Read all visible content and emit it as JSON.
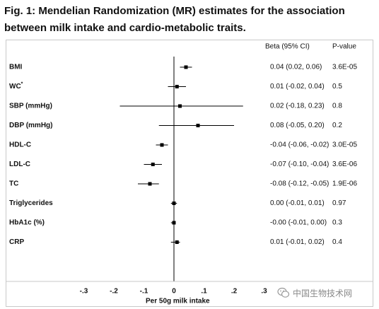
{
  "title": "Fig. 1: Mendelian Randomization (MR) estimates for the association between milk intake and cardio-metabolic traits.",
  "chart_data": {
    "type": "forest",
    "xlabel": "Per 50g milk intake",
    "xlim": [
      -0.3,
      0.3
    ],
    "xticks": [
      -0.3,
      -0.2,
      -0.1,
      0,
      0.1,
      0.2,
      0.3
    ],
    "xtick_labels": [
      "-.3",
      "-.2",
      "-.1",
      "0",
      ".1",
      ".2",
      ".3"
    ],
    "reference_line": 0,
    "column_headers": {
      "beta": "Beta (95% CI)",
      "p": "P-value"
    },
    "rows": [
      {
        "trait": "BMI",
        "sup": "",
        "beta": 0.04,
        "lo": 0.02,
        "hi": 0.06,
        "beta_text": "0.04 (0.02, 0.06)",
        "p_text": "3.6E-05"
      },
      {
        "trait": "WC",
        "sup": "*",
        "beta": 0.01,
        "lo": -0.02,
        "hi": 0.04,
        "beta_text": "0.01 (-0.02, 0.04)",
        "p_text": "0.5"
      },
      {
        "trait": "SBP (mmHg)",
        "sup": "",
        "beta": 0.02,
        "lo": -0.18,
        "hi": 0.23,
        "beta_text": "0.02 (-0.18, 0.23)",
        "p_text": "0.8"
      },
      {
        "trait": "DBP (mmHg)",
        "sup": "",
        "beta": 0.08,
        "lo": -0.05,
        "hi": 0.2,
        "beta_text": "0.08 (-0.05, 0.20)",
        "p_text": "0.2"
      },
      {
        "trait": "HDL-C",
        "sup": "",
        "beta": -0.04,
        "lo": -0.06,
        "hi": -0.02,
        "beta_text": "-0.04 (-0.06, -0.02)",
        "p_text": "3.0E-05"
      },
      {
        "trait": "LDL-C",
        "sup": "",
        "beta": -0.07,
        "lo": -0.1,
        "hi": -0.04,
        "beta_text": "-0.07 (-0.10, -0.04)",
        "p_text": "3.6E-06"
      },
      {
        "trait": "TC",
        "sup": "",
        "beta": -0.08,
        "lo": -0.12,
        "hi": -0.05,
        "beta_text": "-0.08 (-0.12, -0.05)",
        "p_text": "1.9E-06"
      },
      {
        "trait": "Triglycerides",
        "sup": "",
        "beta": 0.0,
        "lo": -0.01,
        "hi": 0.01,
        "beta_text": "0.00 (-0.01, 0.01)",
        "p_text": "0.97"
      },
      {
        "trait": "HbA1c (%)",
        "sup": "",
        "beta": -0.0,
        "lo": -0.01,
        "hi": 0.0,
        "beta_text": "-0.00 (-0.01, 0.00)",
        "p_text": "0.3"
      },
      {
        "trait": "CRP",
        "sup": "",
        "beta": 0.01,
        "lo": -0.01,
        "hi": 0.02,
        "beta_text": "0.01 (-0.01, 0.02)",
        "p_text": "0.4"
      }
    ],
    "colors": {
      "marks": "#000000",
      "frame": "#c9c9c9"
    }
  },
  "watermark": {
    "text": "中国生物技术网",
    "icon": "wechat-logo"
  }
}
